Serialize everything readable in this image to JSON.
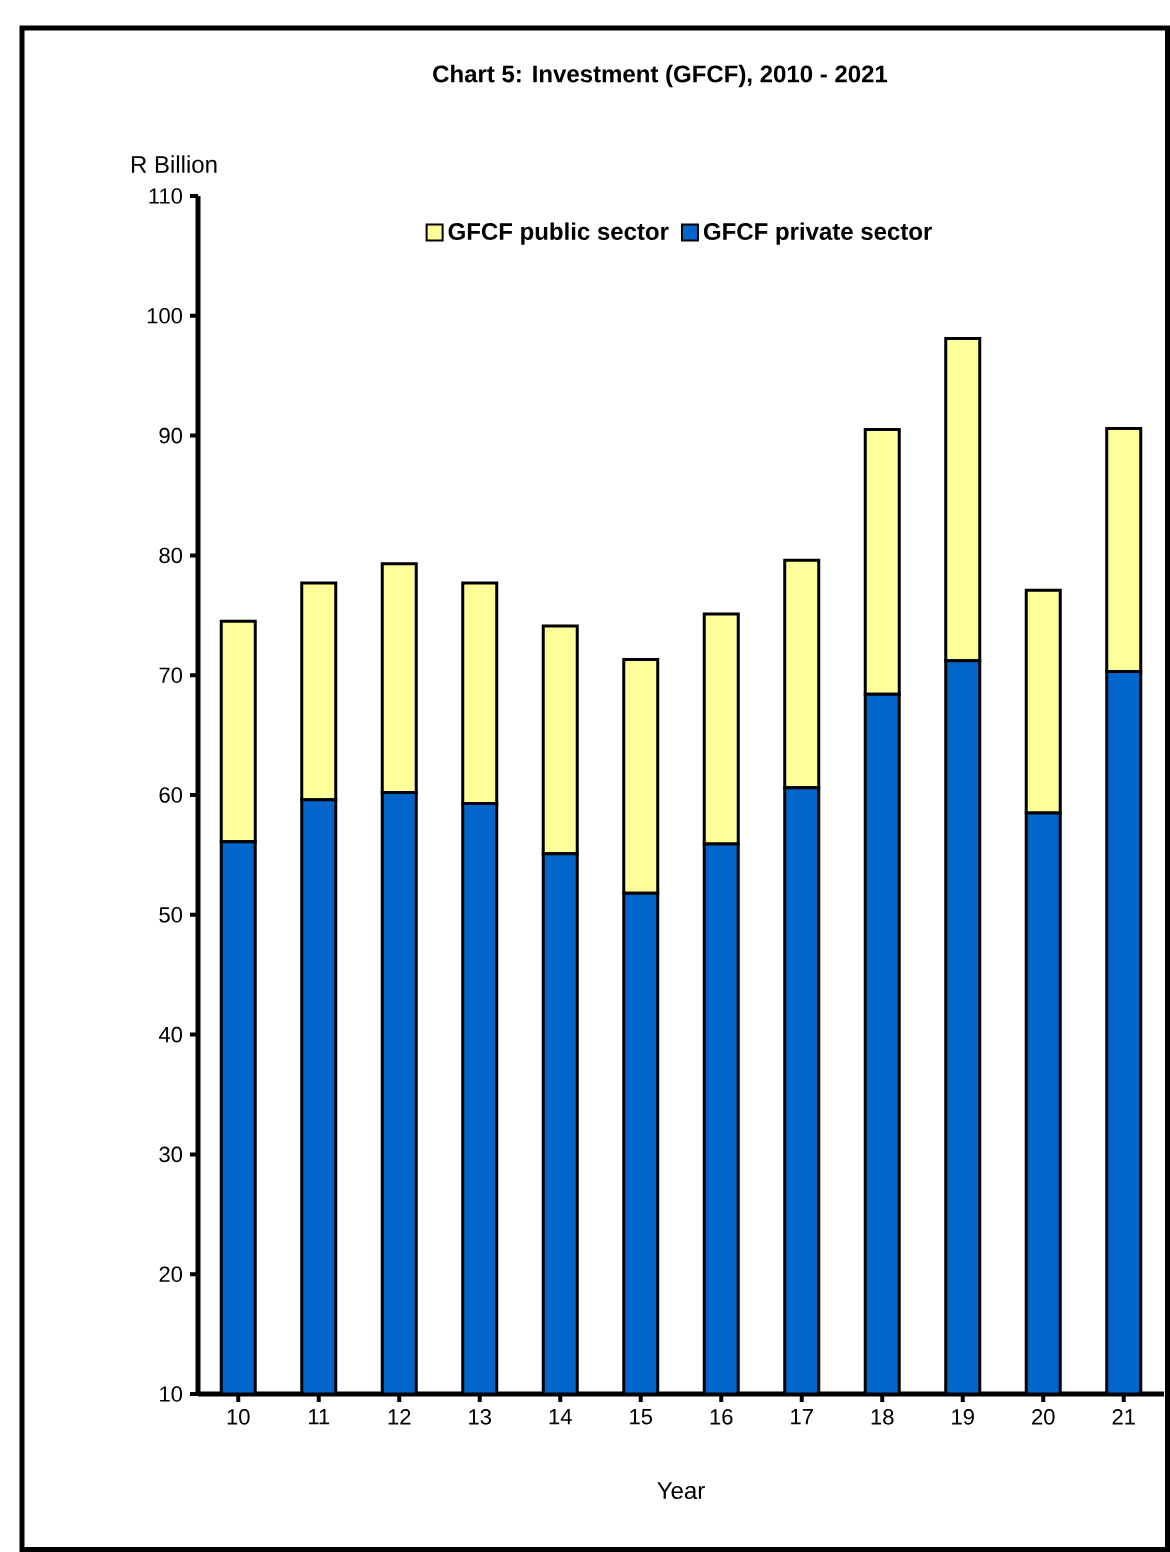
{
  "chart_data": {
    "type": "bar",
    "stacked": true,
    "title": "Chart 5: Investment (GFCF), 2010 - 2021",
    "xlabel": "Year",
    "ylabel": "R Billion",
    "categories": [
      "10",
      "11",
      "12",
      "13",
      "14",
      "15",
      "16",
      "17",
      "18",
      "19",
      "20",
      "21"
    ],
    "series": [
      {
        "name": "GFCF private sector",
        "color": "#0066cc",
        "values": [
          56.1,
          59.6,
          60.2,
          59.3,
          55.1,
          51.8,
          55.9,
          60.6,
          68.4,
          71.2,
          58.5,
          70.3
        ]
      },
      {
        "name": "GFCF public sector",
        "color": "#ffff99",
        "values": [
          18.4,
          18.1,
          19.1,
          18.4,
          19.0,
          19.5,
          19.2,
          19.0,
          22.1,
          26.9,
          18.6,
          20.3
        ]
      }
    ],
    "ylim": [
      10,
      110
    ],
    "yticks": [
      10,
      20,
      30,
      40,
      50,
      60,
      70,
      80,
      90,
      100,
      110
    ],
    "legend": "top"
  }
}
